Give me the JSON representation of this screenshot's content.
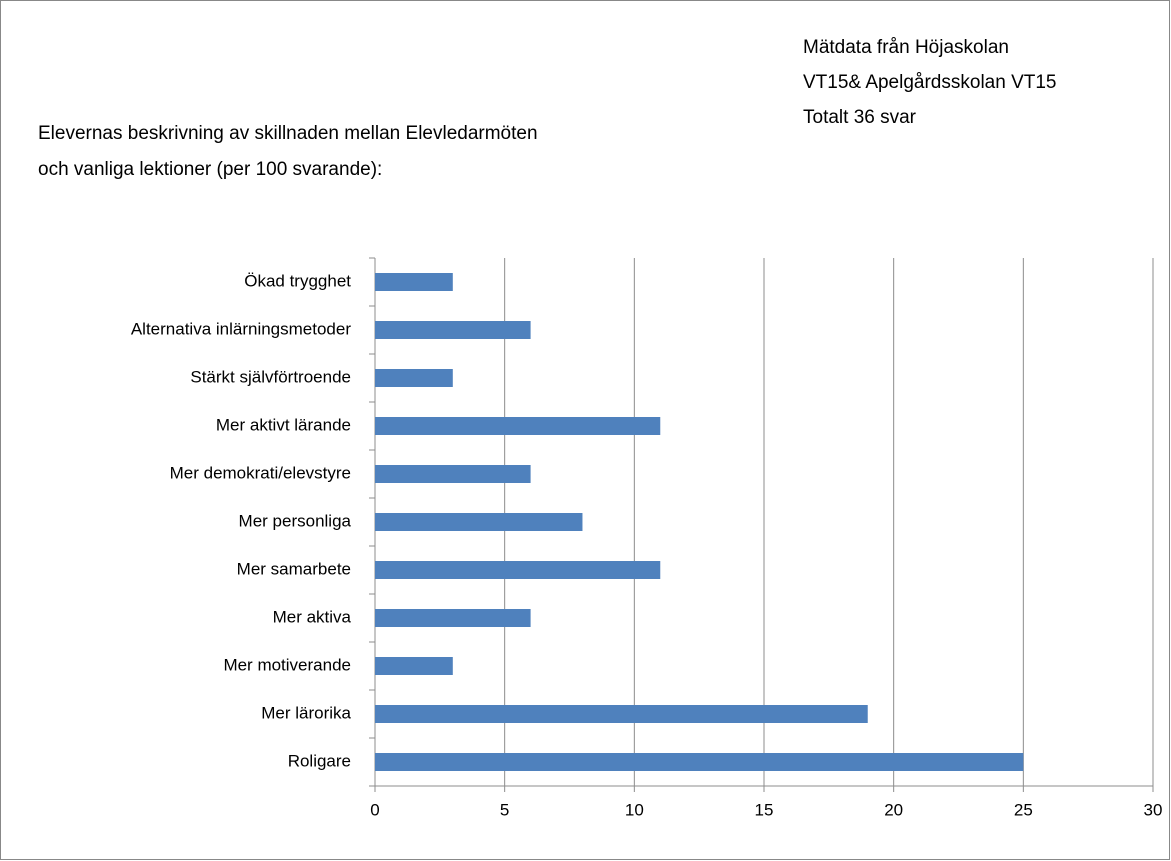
{
  "chart_data": {
    "type": "bar",
    "orientation": "horizontal",
    "title": [
      "Elevernas beskrivning av skillnaden mellan Elevledarmöten",
      "och vanliga lektioner (per 100 svarande):"
    ],
    "annotation": [
      "Mätdata från Höjaskolan",
      "VT15& Apelgårdsskolan VT15",
      "Totalt 36 svar"
    ],
    "categories": [
      "Ökad trygghet",
      "Alternativa inlärningsmetoder",
      "Stärkt självförtroende",
      "Mer aktivt lärande",
      "Mer demokrati/elevstyre",
      "Mer personliga",
      "Mer samarbete",
      "Mer aktiva",
      "Mer motiverande",
      "Mer lärorika",
      "Roligare"
    ],
    "values": [
      3,
      6,
      3,
      11,
      6,
      8,
      11,
      6,
      3,
      19,
      25
    ],
    "color": "#4f81bd",
    "xlim": [
      0,
      30
    ],
    "xticks": [
      0,
      5,
      10,
      15,
      20,
      25,
      30
    ],
    "grid": true
  }
}
